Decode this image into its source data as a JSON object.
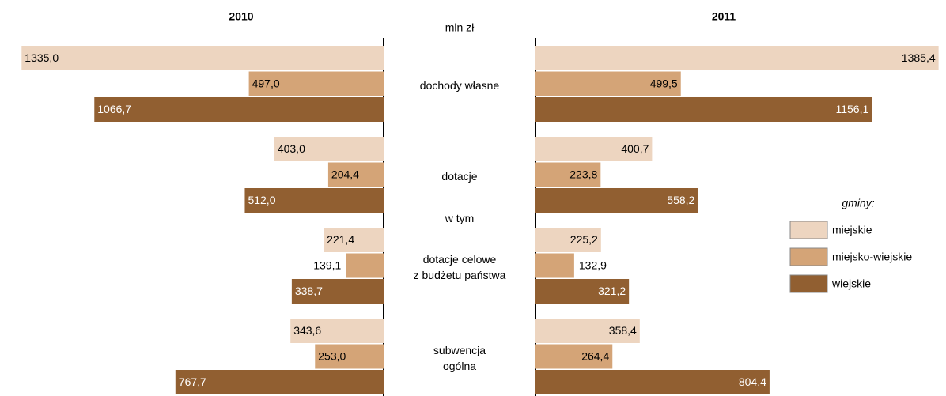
{
  "chart_data": {
    "type": "bar",
    "unit": "mln zł",
    "panels": [
      "2010",
      "2011"
    ],
    "categories": [
      "dochody własne",
      "dotacje",
      "dotacje celowe\nz budżetu państwa",
      "subwencja\nogólna"
    ],
    "annotation": "w tym",
    "legend_title": "gminy:",
    "xlim": [
      0,
      1400
    ],
    "series": [
      {
        "name": "miejskie",
        "color": "#edd5c0",
        "values": [
          [
            1335.0,
            403.0,
            221.4,
            343.6
          ],
          [
            1385.4,
            400.7,
            225.2,
            358.4
          ]
        ],
        "value_labels": [
          [
            "1335,0",
            "403,0",
            "221,4",
            "343,6"
          ],
          [
            "1385,4",
            "400,7",
            "225,2",
            "358,4"
          ]
        ]
      },
      {
        "name": "miejsko-wiejskie",
        "color": "#d4a477",
        "values": [
          [
            497.0,
            204.4,
            139.1,
            253.0
          ],
          [
            499.5,
            223.8,
            132.9,
            264.4
          ]
        ],
        "value_labels": [
          [
            "497,0",
            "204,4",
            "139,1",
            "253,0"
          ],
          [
            "499,5",
            "223,8",
            "132,9",
            "264,4"
          ]
        ]
      },
      {
        "name": "wiejskie",
        "color": "#915f31",
        "values": [
          [
            1066.7,
            512.0,
            338.7,
            767.7
          ],
          [
            1156.1,
            558.2,
            321.2,
            804.4
          ]
        ],
        "value_labels": [
          [
            "1066,7",
            "512,0",
            "338,7",
            "767,7"
          ],
          [
            "1156,1",
            "558,2",
            "321,2",
            "804,4"
          ]
        ]
      }
    ]
  }
}
